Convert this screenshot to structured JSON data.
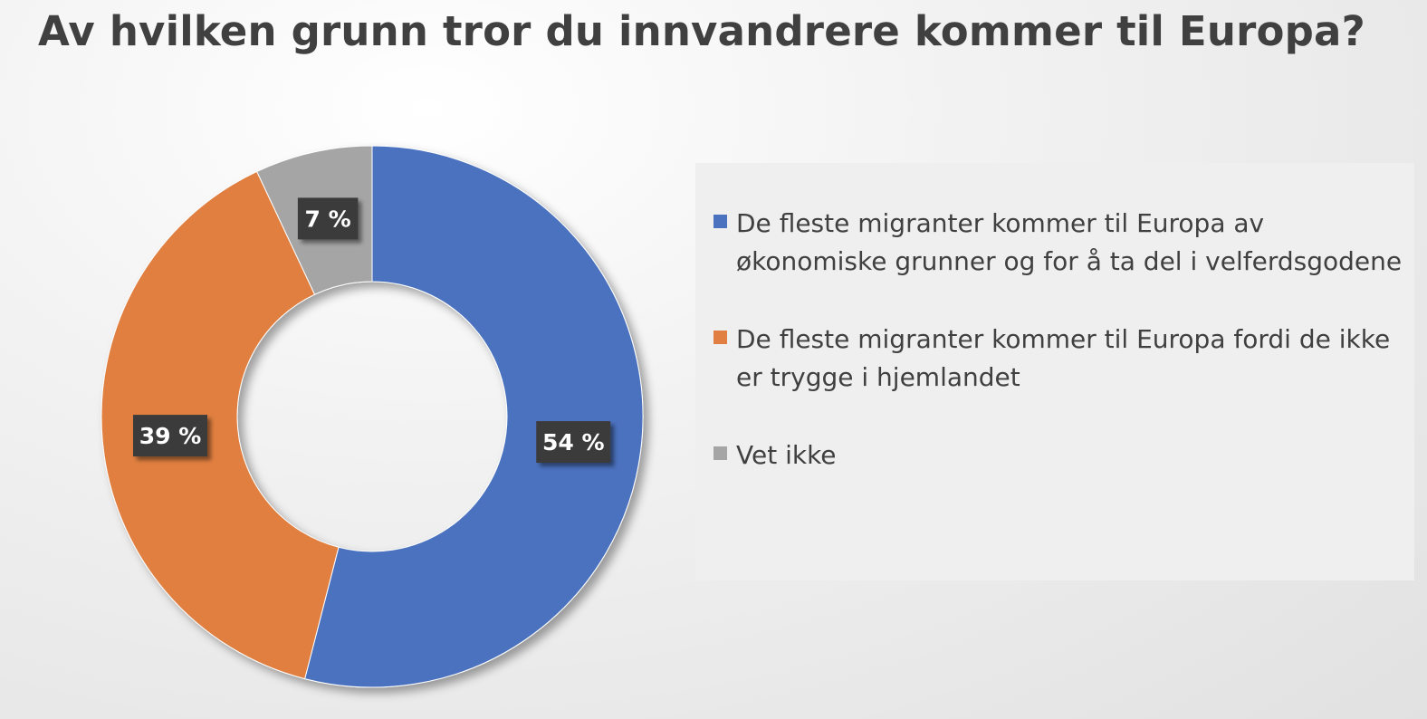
{
  "chart_data": {
    "type": "pie",
    "title": "Av hvilken grunn tror du innvandrere kommer til Europa?",
    "donut": true,
    "legend_position": "right",
    "series": [
      {
        "name": "De fleste migranter kommer til Europa av økonomiske grunner og for å ta del i velferdsgodene",
        "value": 54,
        "label": "54 %",
        "color": "#4b72bf"
      },
      {
        "name": "De fleste migranter kommer til Europa fordi de ikke er trygge i hjemlandet",
        "value": 39,
        "label": "39 %",
        "color": "#e07f41"
      },
      {
        "name": "Vet ikke",
        "value": 7,
        "label": "7 %",
        "color": "#a5a5a5"
      }
    ]
  }
}
